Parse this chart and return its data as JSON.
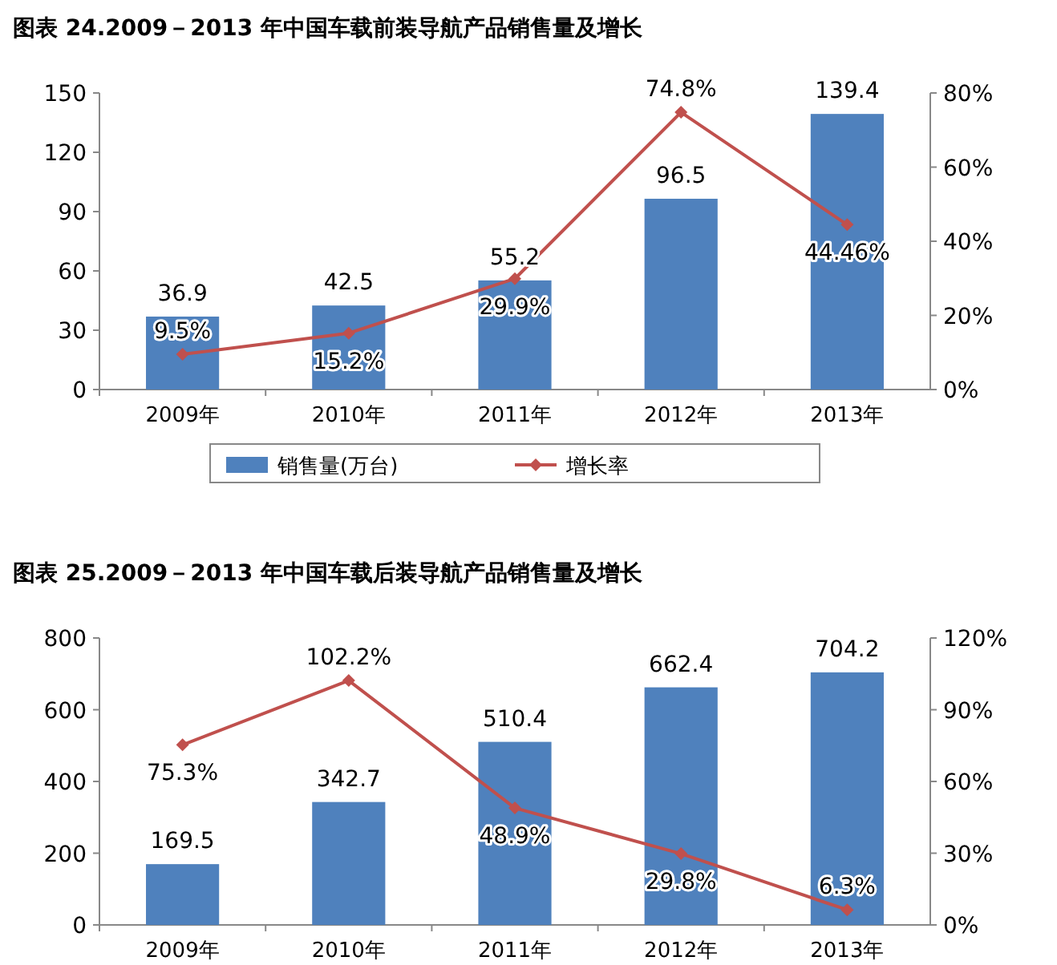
{
  "chart_data": [
    {
      "type": "bar",
      "title": "图表 24.2009－2013 年中国车载前装导航产品销售量及增长",
      "categories": [
        "2009年",
        "2010年",
        "2011年",
        "2012年",
        "2013年"
      ],
      "series": [
        {
          "name": "销售量(万台)",
          "color": "#4f81bd",
          "values": [
            36.9,
            42.5,
            55.2,
            96.5,
            139.4
          ],
          "value_labels": [
            "36.9",
            "42.5",
            "55.2",
            "96.5",
            "139.4"
          ]
        },
        {
          "name": "增长率",
          "type": "line",
          "axis": "y2",
          "color": "#c0504d",
          "values": [
            9.5,
            15.2,
            29.9,
            74.8,
            44.46
          ],
          "value_labels": [
            "9.5%",
            "15.2%",
            "29.9%",
            "74.8%",
            "44.46%"
          ]
        }
      ],
      "ylim": [
        0,
        150
      ],
      "yticks": [
        0,
        30,
        60,
        90,
        120,
        150
      ],
      "y2lim": [
        0,
        80
      ],
      "y2ticks": [
        {
          "value": 0,
          "label": "0%"
        },
        {
          "value": 20,
          "label": "20%"
        },
        {
          "value": 40,
          "label": "40%"
        },
        {
          "value": 60,
          "label": "60%"
        },
        {
          "value": 80,
          "label": "80%"
        }
      ],
      "marker": "diamond",
      "legend": "bottom",
      "grid": false
    },
    {
      "type": "bar",
      "title": "图表 25.2009－2013 年中国车载后装导航产品销售量及增长",
      "categories": [
        "2009年",
        "2010年",
        "2011年",
        "2012年",
        "2013年"
      ],
      "series": [
        {
          "color": "#4f81bd",
          "values": [
            169.5,
            342.7,
            510.4,
            662.4,
            704.2
          ],
          "value_labels": [
            "169.5",
            "342.7",
            "510.4",
            "662.4",
            "704.2"
          ]
        },
        {
          "type": "line",
          "axis": "y2",
          "color": "#c0504d",
          "values": [
            75.3,
            102.2,
            48.9,
            29.8,
            6.3
          ],
          "value_labels": [
            "75.3%",
            "102.2%",
            "48.9%",
            "29.8%",
            "6.3%"
          ]
        }
      ],
      "ylim": [
        0,
        800
      ],
      "yticks": [
        0,
        200,
        400,
        600,
        800
      ],
      "y2lim": [
        0,
        120
      ],
      "y2ticks": [
        {
          "value": 0,
          "label": "0%"
        },
        {
          "value": 30,
          "label": "30%"
        },
        {
          "value": 60,
          "label": "60%"
        },
        {
          "value": 90,
          "label": "90%"
        },
        {
          "value": 120,
          "label": "120%"
        }
      ],
      "marker": "diamond",
      "grid": false
    }
  ]
}
